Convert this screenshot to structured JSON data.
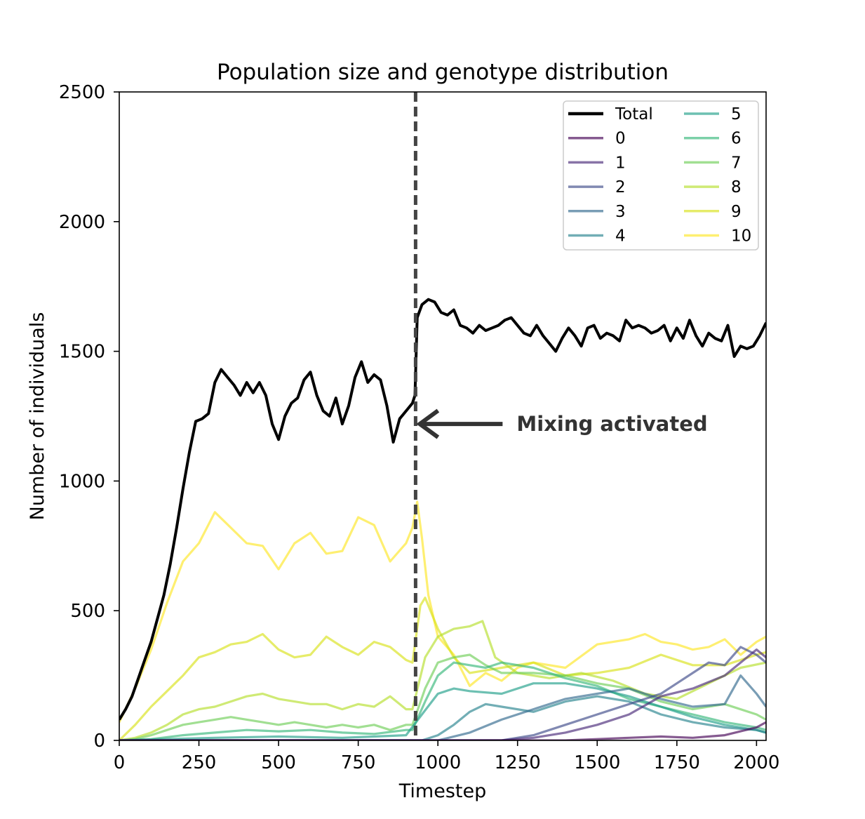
{
  "chart_data": {
    "type": "line",
    "title": "Population size and genotype distribution",
    "xlabel": "Timestep",
    "ylabel": "Number of individuals",
    "xlim": [
      0,
      2030
    ],
    "ylim": [
      0,
      2500
    ],
    "xticks": [
      0,
      250,
      500,
      750,
      1000,
      1250,
      1500,
      1750,
      2000
    ],
    "yticks": [
      0,
      500,
      1000,
      1500,
      2000,
      2500
    ],
    "grid": false,
    "legend_position": "top-right",
    "legend_columns": 2,
    "vline": {
      "x": 930,
      "style": "dashed",
      "color": "#444444"
    },
    "annotation": {
      "text": "Mixing activated",
      "x": 930,
      "y": 1220
    },
    "series": [
      {
        "name": "Total",
        "color": "#000000",
        "x": [
          0,
          20,
          40,
          60,
          80,
          100,
          120,
          140,
          160,
          180,
          200,
          220,
          240,
          260,
          280,
          300,
          320,
          340,
          360,
          380,
          400,
          420,
          440,
          460,
          480,
          500,
          520,
          540,
          560,
          580,
          600,
          620,
          640,
          660,
          680,
          700,
          720,
          740,
          760,
          780,
          800,
          820,
          840,
          860,
          880,
          900,
          920,
          928,
          935,
          950,
          970,
          990,
          1010,
          1030,
          1050,
          1070,
          1090,
          1110,
          1130,
          1150,
          1170,
          1190,
          1210,
          1230,
          1250,
          1270,
          1290,
          1310,
          1330,
          1350,
          1370,
          1390,
          1410,
          1430,
          1450,
          1470,
          1490,
          1510,
          1530,
          1550,
          1570,
          1590,
          1610,
          1630,
          1650,
          1670,
          1690,
          1710,
          1730,
          1750,
          1770,
          1790,
          1810,
          1830,
          1850,
          1870,
          1890,
          1910,
          1930,
          1950,
          1970,
          1990,
          2010,
          2030
        ],
        "y": [
          80,
          120,
          170,
          240,
          310,
          380,
          470,
          560,
          680,
          820,
          970,
          1110,
          1230,
          1240,
          1260,
          1380,
          1430,
          1400,
          1370,
          1330,
          1380,
          1340,
          1380,
          1330,
          1220,
          1160,
          1250,
          1300,
          1320,
          1390,
          1420,
          1330,
          1270,
          1250,
          1320,
          1220,
          1290,
          1400,
          1460,
          1380,
          1410,
          1390,
          1290,
          1150,
          1240,
          1270,
          1300,
          1330,
          1630,
          1680,
          1700,
          1690,
          1650,
          1640,
          1660,
          1600,
          1590,
          1570,
          1600,
          1580,
          1590,
          1600,
          1620,
          1630,
          1600,
          1570,
          1560,
          1600,
          1560,
          1530,
          1500,
          1550,
          1590,
          1560,
          1520,
          1590,
          1600,
          1550,
          1570,
          1560,
          1540,
          1620,
          1590,
          1600,
          1590,
          1570,
          1580,
          1600,
          1540,
          1590,
          1550,
          1620,
          1560,
          1520,
          1570,
          1550,
          1540,
          1600,
          1480,
          1520,
          1510,
          1520,
          1560,
          1610
        ]
      },
      {
        "name": "0",
        "color": "#440154",
        "x": [
          0,
          1250,
          1400,
          1500,
          1600,
          1700,
          1800,
          1900,
          2000,
          2030
        ],
        "y": [
          0,
          0,
          0,
          5,
          10,
          15,
          10,
          20,
          50,
          70
        ]
      },
      {
        "name": "1",
        "color": "#482878",
        "x": [
          0,
          1200,
          1300,
          1400,
          1500,
          1600,
          1700,
          1800,
          1900,
          1950,
          2000,
          2030
        ],
        "y": [
          0,
          0,
          10,
          30,
          60,
          100,
          170,
          200,
          250,
          300,
          350,
          320
        ]
      },
      {
        "name": "2",
        "color": "#3e4989",
        "x": [
          0,
          1200,
          1300,
          1400,
          1500,
          1600,
          1700,
          1750,
          1800,
          1850,
          1900,
          1950,
          2000,
          2030
        ],
        "y": [
          0,
          0,
          20,
          60,
          100,
          140,
          180,
          220,
          260,
          300,
          290,
          360,
          330,
          300
        ]
      },
      {
        "name": "3",
        "color": "#31688e",
        "x": [
          0,
          1000,
          1100,
          1200,
          1300,
          1400,
          1500,
          1600,
          1700,
          1800,
          1900,
          1950,
          2000,
          2030
        ],
        "y": [
          0,
          0,
          30,
          80,
          120,
          160,
          180,
          200,
          160,
          130,
          140,
          250,
          180,
          130
        ]
      },
      {
        "name": "4",
        "color": "#26828e",
        "x": [
          0,
          950,
          1000,
          1050,
          1100,
          1150,
          1200,
          1300,
          1400,
          1500,
          1600,
          1700,
          1800,
          1900,
          2000,
          2030
        ],
        "y": [
          0,
          0,
          20,
          60,
          110,
          140,
          130,
          110,
          150,
          170,
          150,
          100,
          70,
          50,
          40,
          30
        ]
      },
      {
        "name": "5",
        "color": "#1f9e89",
        "x": [
          0,
          300,
          500,
          700,
          900,
          950,
          1000,
          1050,
          1100,
          1200,
          1300,
          1400,
          1500,
          1600,
          1700,
          1800,
          1900,
          2000,
          2030
        ],
        "y": [
          0,
          10,
          15,
          10,
          20,
          100,
          180,
          200,
          190,
          180,
          220,
          220,
          200,
          170,
          130,
          90,
          60,
          40,
          30
        ]
      },
      {
        "name": "6",
        "color": "#35b779",
        "x": [
          0,
          100,
          200,
          300,
          400,
          500,
          600,
          700,
          800,
          900,
          920,
          960,
          1000,
          1050,
          1100,
          1150,
          1200,
          1300,
          1400,
          1500,
          1600,
          1700,
          1800,
          1900,
          2000,
          2030
        ],
        "y": [
          0,
          5,
          20,
          30,
          40,
          35,
          40,
          30,
          25,
          40,
          40,
          150,
          250,
          300,
          290,
          280,
          300,
          280,
          240,
          210,
          160,
          130,
          100,
          70,
          50,
          40
        ]
      },
      {
        "name": "7",
        "color": "#6ece58",
        "x": [
          0,
          50,
          100,
          150,
          200,
          250,
          300,
          350,
          400,
          450,
          500,
          550,
          600,
          650,
          700,
          750,
          800,
          850,
          900,
          920,
          960,
          1000,
          1050,
          1100,
          1150,
          1200,
          1300,
          1400,
          1500,
          1600,
          1700,
          1800,
          1900,
          2000,
          2030
        ],
        "y": [
          0,
          5,
          20,
          40,
          60,
          70,
          80,
          90,
          80,
          70,
          60,
          70,
          60,
          50,
          60,
          50,
          60,
          40,
          60,
          60,
          200,
          300,
          320,
          330,
          290,
          260,
          260,
          250,
          220,
          200,
          150,
          120,
          140,
          100,
          80
        ]
      },
      {
        "name": "8",
        "color": "#b5de2b",
        "x": [
          0,
          50,
          100,
          150,
          200,
          250,
          300,
          350,
          400,
          450,
          500,
          550,
          600,
          650,
          700,
          750,
          800,
          850,
          900,
          920,
          960,
          1000,
          1050,
          1100,
          1140,
          1180,
          1250,
          1350,
          1450,
          1550,
          1650,
          1750,
          1850,
          1950,
          2030
        ],
        "y": [
          0,
          10,
          30,
          60,
          100,
          120,
          130,
          150,
          170,
          180,
          160,
          150,
          140,
          140,
          120,
          140,
          130,
          170,
          120,
          120,
          320,
          400,
          430,
          440,
          460,
          320,
          260,
          240,
          260,
          230,
          180,
          160,
          220,
          280,
          300
        ]
      },
      {
        "name": "9",
        "color": "#d8e219",
        "x": [
          0,
          50,
          100,
          150,
          200,
          250,
          300,
          350,
          400,
          450,
          500,
          550,
          600,
          650,
          700,
          750,
          800,
          850,
          900,
          920,
          945,
          960,
          1000,
          1050,
          1100,
          1200,
          1300,
          1400,
          1500,
          1600,
          1700,
          1800,
          1900,
          2000,
          2030
        ],
        "y": [
          0,
          60,
          130,
          190,
          250,
          320,
          340,
          370,
          380,
          410,
          350,
          320,
          330,
          400,
          360,
          330,
          380,
          360,
          310,
          300,
          520,
          550,
          430,
          320,
          260,
          280,
          300,
          250,
          260,
          280,
          330,
          290,
          290,
          330,
          340
        ]
      },
      {
        "name": "10",
        "color": "#fde725",
        "x": [
          0,
          50,
          100,
          150,
          200,
          250,
          300,
          350,
          400,
          450,
          500,
          550,
          600,
          650,
          700,
          750,
          800,
          850,
          900,
          920,
          935,
          950,
          970,
          1000,
          1050,
          1100,
          1150,
          1200,
          1250,
          1300,
          1400,
          1500,
          1600,
          1650,
          1700,
          1750,
          1800,
          1850,
          1900,
          1950,
          2000,
          2030
        ],
        "y": [
          70,
          200,
          350,
          530,
          690,
          760,
          880,
          820,
          760,
          750,
          660,
          760,
          800,
          720,
          730,
          860,
          830,
          690,
          760,
          820,
          920,
          780,
          560,
          400,
          330,
          210,
          260,
          230,
          280,
          300,
          280,
          370,
          390,
          410,
          380,
          370,
          350,
          360,
          390,
          330,
          380,
          400
        ]
      }
    ]
  }
}
